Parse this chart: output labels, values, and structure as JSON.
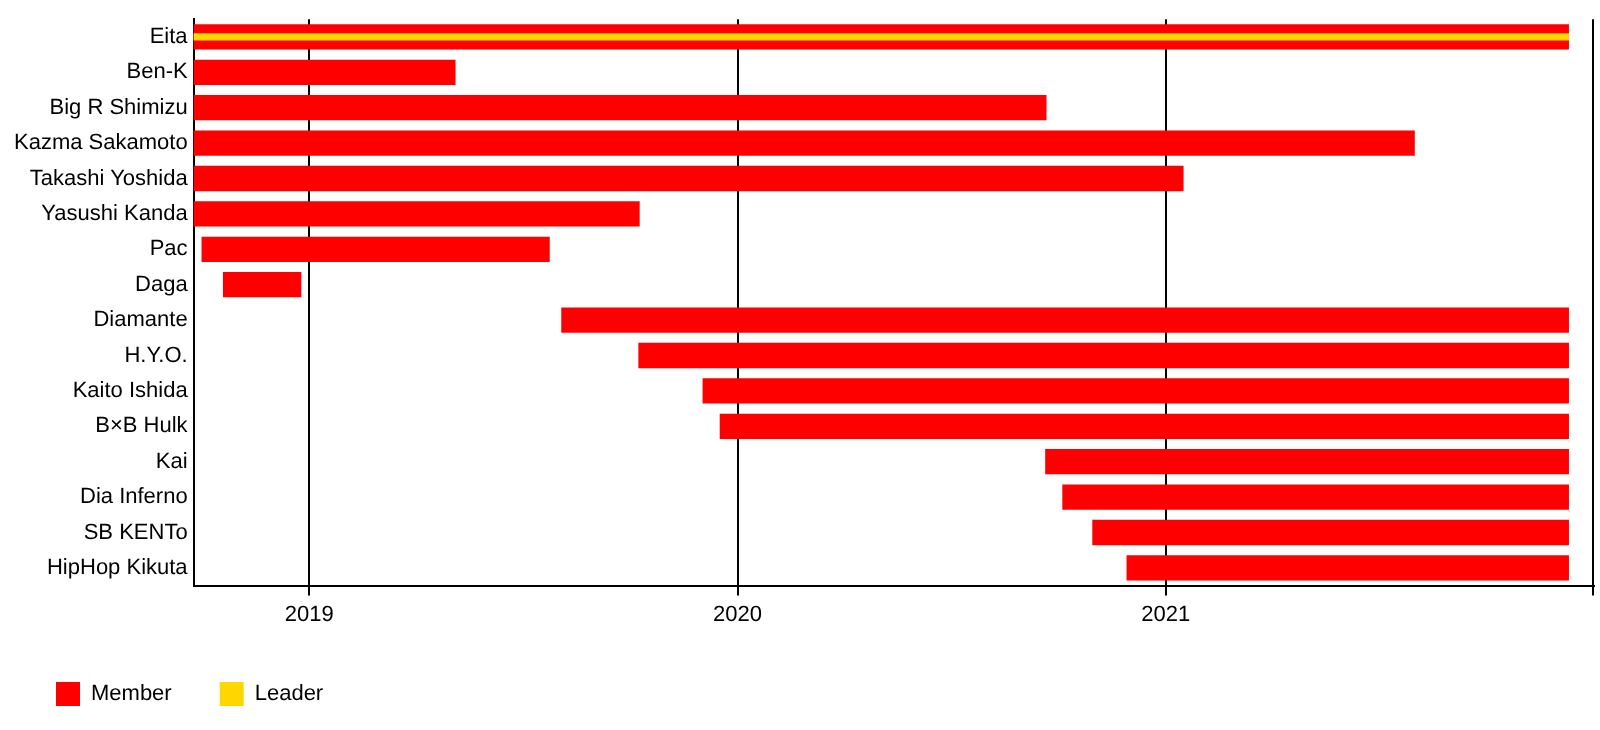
{
  "chart_data": {
    "type": "bar",
    "orientation": "horizontal",
    "categories": [
      "Eita",
      "Ben-K",
      "Big R Shimizu",
      "Kazma Sakamoto",
      "Takashi Yoshida",
      "Yasushi Kanda",
      "Pac",
      "Daga",
      "Diamante",
      "H.Y.O.",
      "Kaito Ishida",
      "B×B Hulk",
      "Kai",
      "Dia Inferno",
      "SB KENTo",
      "HipHop Kikuta"
    ],
    "series": [
      {
        "name": "Member",
        "color": "#ff0000",
        "base": [
          2018.73,
          2018.73,
          2018.73,
          2018.73,
          2018.73,
          2018.73,
          2018.75,
          2018.8,
          2019.59,
          2019.77,
          2019.92,
          2019.96,
          2020.72,
          2020.76,
          2020.83,
          2020.91
        ],
        "values": [
          3.21,
          0.61,
          1.99,
          2.85,
          2.31,
          1.04,
          0.81,
          0.18,
          2.35,
          2.17,
          2.02,
          1.98,
          1.22,
          1.18,
          1.11,
          1.03
        ]
      },
      {
        "name": "Leader",
        "color": "#ffd700",
        "base": [
          2018.73,
          null,
          null,
          null,
          null,
          null,
          null,
          null,
          null,
          null,
          null,
          null,
          null,
          null,
          null,
          null
        ],
        "values": [
          3.21,
          null,
          null,
          null,
          null,
          null,
          null,
          null,
          null,
          null,
          null,
          null,
          null,
          null,
          null,
          null
        ]
      }
    ],
    "xlim": [
      2018.73,
      2022.0
    ],
    "xticks": [
      2019,
      2020,
      2021
    ],
    "grid": "x",
    "legend": "bottom left"
  }
}
